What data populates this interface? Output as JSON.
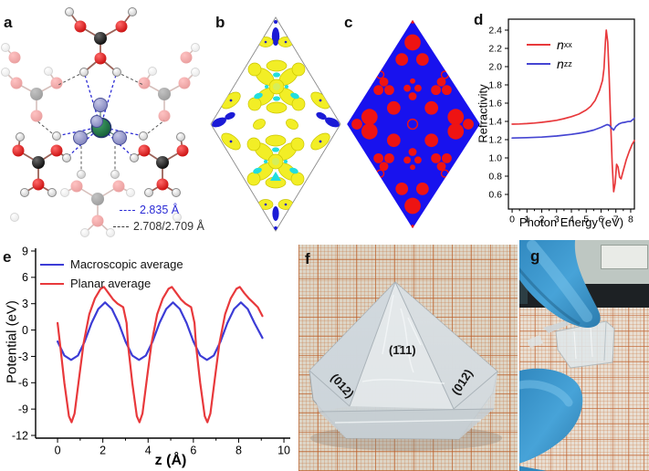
{
  "panels": {
    "a": {
      "label": "a",
      "bond_legend": [
        {
          "text": "2.835 Å",
          "color": "#2b2bd5"
        },
        {
          "text": "2.708/2.709 Å",
          "color": "#3a3a3a"
        }
      ]
    },
    "b": {
      "label": "b"
    },
    "c": {
      "label": "c"
    },
    "d": {
      "label": "d"
    },
    "e": {
      "label": "e"
    },
    "f": {
      "label": "f",
      "face_labels": {
        "center": "(1̄11)",
        "left": "(012)",
        "right": "(012)"
      }
    },
    "g": {
      "label": "g"
    }
  },
  "chart_data": [
    {
      "id": "refractivity-spectrum",
      "type": "line",
      "xlabel": "Photon Energy (eV)",
      "ylabel": "Refractivity",
      "xlim": [
        -0.25,
        8.25
      ],
      "ylim": [
        0.44,
        2.52
      ],
      "xticks": [
        "0",
        "1",
        "2",
        "3",
        "4",
        "5",
        "6",
        "7",
        "8"
      ],
      "xminor": [
        0.5,
        1.5,
        2.5,
        3.5,
        4.5,
        5.5,
        6.5,
        7.5
      ],
      "yticks": [
        "0.6",
        "0.8",
        "1.0",
        "1.2",
        "1.4",
        "1.6",
        "1.8",
        "2.0",
        "2.2",
        "2.4"
      ],
      "frame": "box",
      "legend_position": "top-left-inside",
      "grid": false,
      "series": [
        {
          "name": "n_xx",
          "legend_main": "n",
          "legend_sub": "xx",
          "color": "#e8393c",
          "x": [
            0,
            0.5,
            1,
            1.5,
            2,
            2.5,
            3,
            3.5,
            4,
            4.5,
            5,
            5.3,
            5.6,
            5.9,
            6.1,
            6.2,
            6.3,
            6.35,
            6.45,
            6.55,
            6.65,
            6.75,
            6.85,
            6.95,
            7.05,
            7.15,
            7.25,
            7.35,
            7.5,
            7.7,
            7.9,
            8.1,
            8.25
          ],
          "y": [
            1.37,
            1.372,
            1.376,
            1.382,
            1.39,
            1.4,
            1.412,
            1.43,
            1.452,
            1.48,
            1.525,
            1.565,
            1.63,
            1.74,
            1.85,
            1.98,
            2.28,
            2.4,
            2.27,
            1.88,
            1.4,
            0.95,
            0.63,
            0.72,
            0.93,
            0.9,
            0.79,
            0.77,
            0.86,
            0.98,
            1.07,
            1.15,
            1.19
          ]
        },
        {
          "name": "n_zz",
          "legend_main": "n",
          "legend_sub": "zz",
          "color": "#4545d2",
          "x": [
            0,
            1,
            2,
            3,
            4,
            4.5,
            5,
            5.5,
            6,
            6.2,
            6.4,
            6.55,
            6.7,
            6.85,
            7,
            7.2,
            7.4,
            7.6,
            7.8,
            8,
            8.25
          ],
          "y": [
            1.218,
            1.222,
            1.228,
            1.24,
            1.258,
            1.27,
            1.285,
            1.305,
            1.335,
            1.35,
            1.365,
            1.358,
            1.33,
            1.305,
            1.345,
            1.372,
            1.385,
            1.39,
            1.398,
            1.4,
            1.435
          ]
        }
      ]
    },
    {
      "id": "planar-potential",
      "type": "line",
      "xlabel": "z (Å)",
      "ylabel": "Potential (eV)",
      "xlim": [
        -0.97,
        10.28
      ],
      "ylim": [
        -12.31,
        9.31
      ],
      "xticks": [
        "0",
        "2",
        "4",
        "6",
        "8",
        "10"
      ],
      "xminor": [
        1,
        3,
        5,
        7,
        9
      ],
      "yticks": [
        "-12",
        "-9",
        "-6",
        "-3",
        "0",
        "3",
        "6",
        "9"
      ],
      "frame": "axes",
      "legend_position": "top-left-inside",
      "grid": false,
      "series": [
        {
          "name": "Macroscopic average",
          "color": "#3c3cd6",
          "x": [
            0,
            0.3,
            0.6,
            0.9,
            1.2,
            1.5,
            1.8,
            2.1,
            2.4,
            2.7,
            3,
            3.3,
            3.6,
            3.9,
            4.2,
            4.5,
            4.8,
            5.1,
            5.4,
            5.7,
            6,
            6.3,
            6.6,
            6.9,
            7.2,
            7.5,
            7.8,
            8.1,
            8.4,
            8.7,
            9.05
          ],
          "y": [
            -1.3,
            -2.9,
            -3.4,
            -2.9,
            -1.3,
            0.8,
            2.4,
            3.15,
            2.4,
            0.8,
            -1.3,
            -2.9,
            -3.4,
            -2.9,
            -1.3,
            0.8,
            2.4,
            3.15,
            2.4,
            0.8,
            -1.3,
            -2.9,
            -3.4,
            -2.9,
            -1.3,
            0.8,
            2.4,
            3.15,
            2.4,
            0.8,
            -0.9
          ]
        },
        {
          "name": "Planar average",
          "color": "#e8393c",
          "x": [
            0,
            0.12,
            0.3,
            0.5,
            0.62,
            0.75,
            0.95,
            1.15,
            1.4,
            1.65,
            1.9,
            2.05,
            2.25,
            2.45,
            2.65,
            2.9,
            3.05,
            3.12,
            3.3,
            3.5,
            3.62,
            3.75,
            3.95,
            4.15,
            4.4,
            4.65,
            4.9,
            5.05,
            5.25,
            5.45,
            5.65,
            5.9,
            6.05,
            6.12,
            6.3,
            6.5,
            6.62,
            6.75,
            6.95,
            7.15,
            7.4,
            7.65,
            7.9,
            8.05,
            8.25,
            8.45,
            8.65,
            8.85,
            9.05
          ],
          "y": [
            0.8,
            -1.8,
            -6,
            -9.8,
            -10.5,
            -9.5,
            -5.5,
            -1.5,
            1.8,
            3.6,
            4.7,
            4.9,
            4.2,
            3.5,
            3,
            2.6,
            0.8,
            -1.8,
            -6,
            -9.8,
            -10.5,
            -9.5,
            -5.5,
            -1.5,
            1.8,
            3.6,
            4.7,
            4.9,
            4.2,
            3.5,
            3,
            2.6,
            0.8,
            -1.8,
            -6,
            -9.8,
            -10.5,
            -9.5,
            -5.5,
            -1.5,
            1.8,
            3.6,
            4.7,
            4.9,
            4.2,
            3.6,
            3.1,
            2.6,
            1.6
          ]
        }
      ]
    }
  ],
  "colors": {
    "nxx_line": "#e8393c",
    "nzz_line": "#4545d2",
    "hbond_blue": "#2b2bd5",
    "hbond_gray": "#555555",
    "isosurface_yellow": "#f2ee26",
    "isosurface_cyan": "#22dede",
    "isosurface_blue": "#1b1bd6",
    "elf_background_blue": "#1812ee",
    "elf_red": "#ee1313",
    "glove_blue": "#3d9bd1",
    "graphpaper_orange": "#c2662e"
  }
}
